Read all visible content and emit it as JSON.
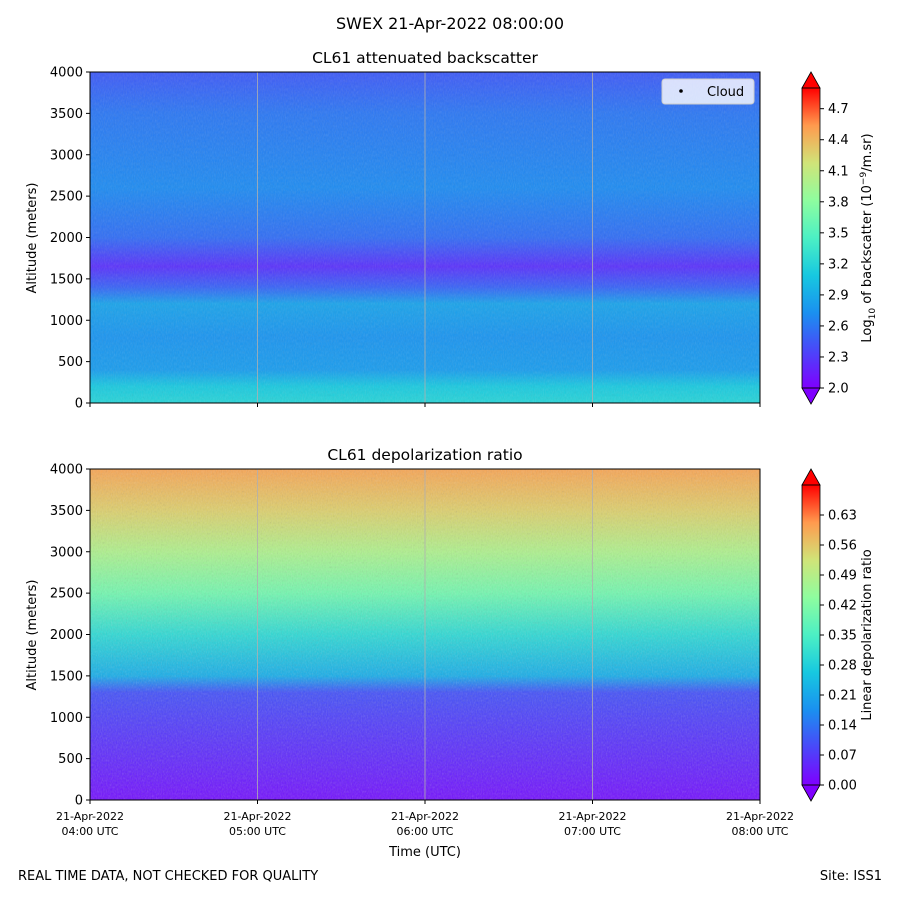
{
  "suptitle": "SWEX 21-Apr-2022 08:00:00",
  "footer": {
    "left": "REAL TIME DATA, NOT CHECKED FOR QUALITY",
    "right": "Site: ISS1"
  },
  "chart_data": [
    {
      "type": "heatmap",
      "title": "CL61 attenuated backscatter",
      "ylabel": "Altitude (meters)",
      "ylim": [
        0,
        4000
      ],
      "yticks": [
        "0",
        "500",
        "1000",
        "1500",
        "2000",
        "2500",
        "3000",
        "3500",
        "4000"
      ],
      "colorbar": {
        "label_main": "Log",
        "label_sub": "10",
        "label_rest": " of backscatter (10",
        "label_sup": "−9",
        "label_end": "/m.sr)",
        "vmin": 2.0,
        "vmax": 4.9,
        "ticks": [
          "2.0",
          "2.3",
          "2.6",
          "2.9",
          "3.2",
          "3.5",
          "3.8",
          "4.1",
          "4.4",
          "4.7"
        ],
        "colormap": "rainbow",
        "extend": "both"
      },
      "legend": {
        "label": "Cloud",
        "marker": "black dot",
        "placement": "top-right"
      },
      "grid": "vertical lines at hourly ticks",
      "profile": [
        {
          "altitude_m": 0,
          "log10_backscatter": 3.2
        },
        {
          "altitude_m": 200,
          "log10_backscatter": 3.1
        },
        {
          "altitude_m": 400,
          "log10_backscatter": 2.8
        },
        {
          "altitude_m": 800,
          "log10_backscatter": 2.75
        },
        {
          "altitude_m": 1200,
          "log10_backscatter": 2.85
        },
        {
          "altitude_m": 1400,
          "log10_backscatter": 2.5
        },
        {
          "altitude_m": 1650,
          "log10_backscatter": 2.25
        },
        {
          "altitude_m": 2000,
          "log10_backscatter": 2.55
        },
        {
          "altitude_m": 2600,
          "log10_backscatter": 2.7
        },
        {
          "altitude_m": 3500,
          "log10_backscatter": 2.6
        },
        {
          "altitude_m": 4000,
          "log10_backscatter": 2.45
        }
      ]
    },
    {
      "type": "heatmap",
      "title": "CL61 depolarization ratio",
      "ylabel": "Altitude (meters)",
      "xlabel": "Time (UTC)",
      "ylim": [
        0,
        4000
      ],
      "yticks": [
        "0",
        "500",
        "1000",
        "1500",
        "2000",
        "2500",
        "3000",
        "3500",
        "4000"
      ],
      "xticks": [
        [
          "21-Apr-2022",
          "04:00 UTC"
        ],
        [
          "21-Apr-2022",
          "05:00 UTC"
        ],
        [
          "21-Apr-2022",
          "06:00 UTC"
        ],
        [
          "21-Apr-2022",
          "07:00 UTC"
        ],
        [
          "21-Apr-2022",
          "08:00 UTC"
        ]
      ],
      "colorbar": {
        "label": "Linear depolarization ratio",
        "vmin": 0.0,
        "vmax": 0.7,
        "ticks": [
          "0.00",
          "0.07",
          "0.14",
          "0.21",
          "0.28",
          "0.35",
          "0.42",
          "0.49",
          "0.56",
          "0.63"
        ],
        "colormap": "rainbow",
        "extend": "both"
      },
      "grid": "vertical lines at hourly ticks",
      "profile": [
        {
          "altitude_m": 0,
          "depol_ratio": 0.02
        },
        {
          "altitude_m": 500,
          "depol_ratio": 0.05
        },
        {
          "altitude_m": 1000,
          "depol_ratio": 0.08
        },
        {
          "altitude_m": 1300,
          "depol_ratio": 0.1
        },
        {
          "altitude_m": 1500,
          "depol_ratio": 0.22
        },
        {
          "altitude_m": 2000,
          "depol_ratio": 0.3
        },
        {
          "altitude_m": 2500,
          "depol_ratio": 0.4
        },
        {
          "altitude_m": 3000,
          "depol_ratio": 0.48
        },
        {
          "altitude_m": 3500,
          "depol_ratio": 0.55
        },
        {
          "altitude_m": 4000,
          "depol_ratio": 0.6
        }
      ]
    }
  ]
}
